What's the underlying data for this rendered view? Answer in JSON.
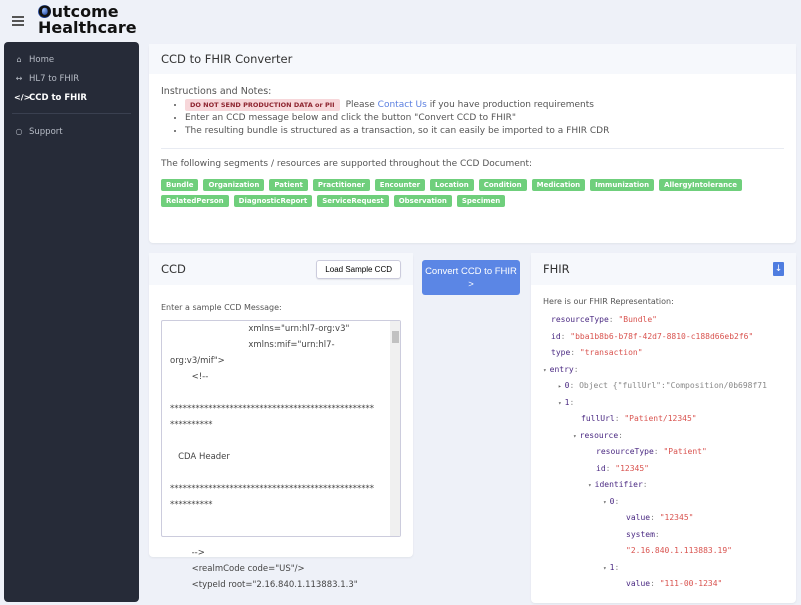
{
  "app": {
    "logo_line1": "Outcome",
    "logo_line2": "Healthcare"
  },
  "sidebar": {
    "items": [
      {
        "label": "Home",
        "icon": "home-icon"
      },
      {
        "label": "HL7 to FHIR",
        "icon": "arrows-h-icon"
      },
      {
        "label": "CCD to FHIR",
        "icon": "code-icon",
        "active": true
      },
      {
        "label": "Support",
        "icon": "chat-icon"
      }
    ]
  },
  "top": {
    "title": "CCD to FHIR Converter",
    "instructions_title": "Instructions and Notes:",
    "warning": "DO NOT SEND PRODUCTION DATA or PII",
    "note1_pre": "Please",
    "note1_link": "Contact Us",
    "note1_post": "if you have production requirements",
    "note2": "Enter an CCD message below and click the button \"Convert CCD to FHIR\"",
    "note3": "The resulting bundle is structured as a transaction, so it can easily be imported to a FHIR CDR",
    "segments_intro": "The following segments / resources are supported throughout the CCD Document:",
    "tags": [
      "Bundle",
      "Organization",
      "Patient",
      "Practitioner",
      "Encounter",
      "Location",
      "Condition",
      "Medication",
      "Immunization",
      "AllergyIntolerance",
      "RelatedPerson",
      "DiagnosticReport",
      "ServiceRequest",
      "Observation",
      "Specimen"
    ],
    "tag_color": "#6fcf7c"
  },
  "ccd": {
    "title": "CCD",
    "load_button": "Load Sample CCD",
    "label": "Enter a sample CCD Message:",
    "text": "                             xmlns=\"urn:hl7-org:v3\"\n                             xmlns:mif=\"urn:hl7-\norg:v3/mif\">\n        <!--\n\n************************************************\n**********\n\n   CDA Header\n\n************************************************\n**********\n\n\n        -->\n        <realmCode code=\"US\"/>\n        <typeId root=\"2.16.840.1.113883.1.3\""
  },
  "convert_button": "Convert CCD to FHIR >",
  "fhir": {
    "title": "FHIR",
    "download_icon": "file-download-icon",
    "label": "Here is our FHIR Representation:",
    "rows": [
      {
        "indent": 0,
        "key": "resourceType",
        "value": "\"Bundle\""
      },
      {
        "indent": 0,
        "key": "id",
        "value": "\"bba1b8b6-b78f-42d7-8810-c188d66eb2f6\""
      },
      {
        "indent": 0,
        "key": "type",
        "value": "\"transaction\""
      },
      {
        "indent": 0,
        "key": "entry",
        "arrow": "▾"
      },
      {
        "indent": 1,
        "key": "0",
        "arrow": "▸",
        "value": "Object {\"fullUrl\":\"Composition/0b698f71",
        "collapsed": true
      },
      {
        "indent": 1,
        "key": "1",
        "arrow": "▾"
      },
      {
        "indent": 2,
        "key": "fullUrl",
        "value": "\"Patient/12345\""
      },
      {
        "indent": 2,
        "key": "resource",
        "arrow": "▾"
      },
      {
        "indent": 3,
        "key": "resourceType",
        "value": "\"Patient\""
      },
      {
        "indent": 3,
        "key": "id",
        "value": "\"12345\""
      },
      {
        "indent": 3,
        "key": "identifier",
        "arrow": "▾"
      },
      {
        "indent": 4,
        "key": "0",
        "arrow": "▾"
      },
      {
        "indent": 5,
        "key": "value",
        "value": "\"12345\""
      },
      {
        "indent": 5,
        "key": "system",
        "value": ""
      },
      {
        "indent": 5,
        "key": "",
        "value": "\"2.16.840.1.113883.19\""
      },
      {
        "indent": 4,
        "key": "1",
        "arrow": "▾"
      },
      {
        "indent": 5,
        "key": "value",
        "value": "\"111-00-1234\""
      }
    ]
  }
}
